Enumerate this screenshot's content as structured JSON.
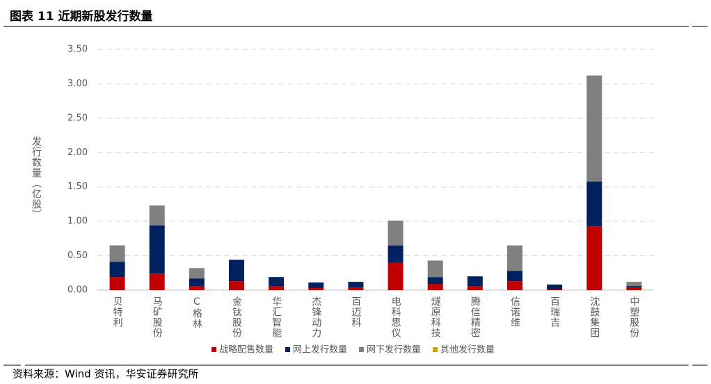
{
  "chart_data": {
    "type": "stacked_bar",
    "title": "图表 11 近期新股发行数量",
    "y_label": "发行数量（亿股）",
    "source": "资料来源：Wind 资讯，华安证券研究所",
    "categories": [
      "贝特利",
      "马矿股份",
      "C格林",
      "金钛股份",
      "华汇智能",
      "杰锋动力",
      "百迈科",
      "电科思仪",
      "燧原科技",
      "腾信精密",
      "信诺维",
      "百瑞吉",
      "沈鼓集团",
      "中塑股份"
    ],
    "series": [
      {
        "name": "战略配售数量",
        "color": "#c00000",
        "values": [
          0.19,
          0.24,
          0.06,
          0.13,
          0.06,
          0.03,
          0.04,
          0.4,
          0.09,
          0.06,
          0.13,
          0.01,
          0.93,
          0.04
        ]
      },
      {
        "name": "网上发行数量",
        "color": "#002060",
        "values": [
          0.22,
          0.7,
          0.11,
          0.31,
          0.13,
          0.08,
          0.08,
          0.25,
          0.1,
          0.14,
          0.15,
          0.07,
          0.65,
          0.02
        ]
      },
      {
        "name": "网下发行数量",
        "color": "#808080",
        "values": [
          0.24,
          0.29,
          0.15,
          0,
          0,
          0,
          0,
          0.36,
          0.24,
          0,
          0.37,
          0,
          1.54,
          0.06
        ]
      },
      {
        "name": "其他发行数量",
        "color": "#d4a000",
        "values": [
          0,
          0,
          0,
          0,
          0,
          0,
          0,
          0,
          0,
          0,
          0,
          0,
          0,
          0
        ]
      }
    ],
    "ylim": [
      0,
      3.5
    ],
    "yticks": [
      {
        "value": 0,
        "label": "0.00"
      },
      {
        "value": 0.5,
        "label": "0.50"
      },
      {
        "value": 1,
        "label": "1.00"
      },
      {
        "value": 1.5,
        "label": "1.50"
      },
      {
        "value": 2,
        "label": "2.00"
      },
      {
        "value": 2.5,
        "label": "2.50"
      },
      {
        "value": 3,
        "label": "3.00"
      },
      {
        "value": 3.5,
        "label": "3.50"
      }
    ],
    "grid": true
  }
}
